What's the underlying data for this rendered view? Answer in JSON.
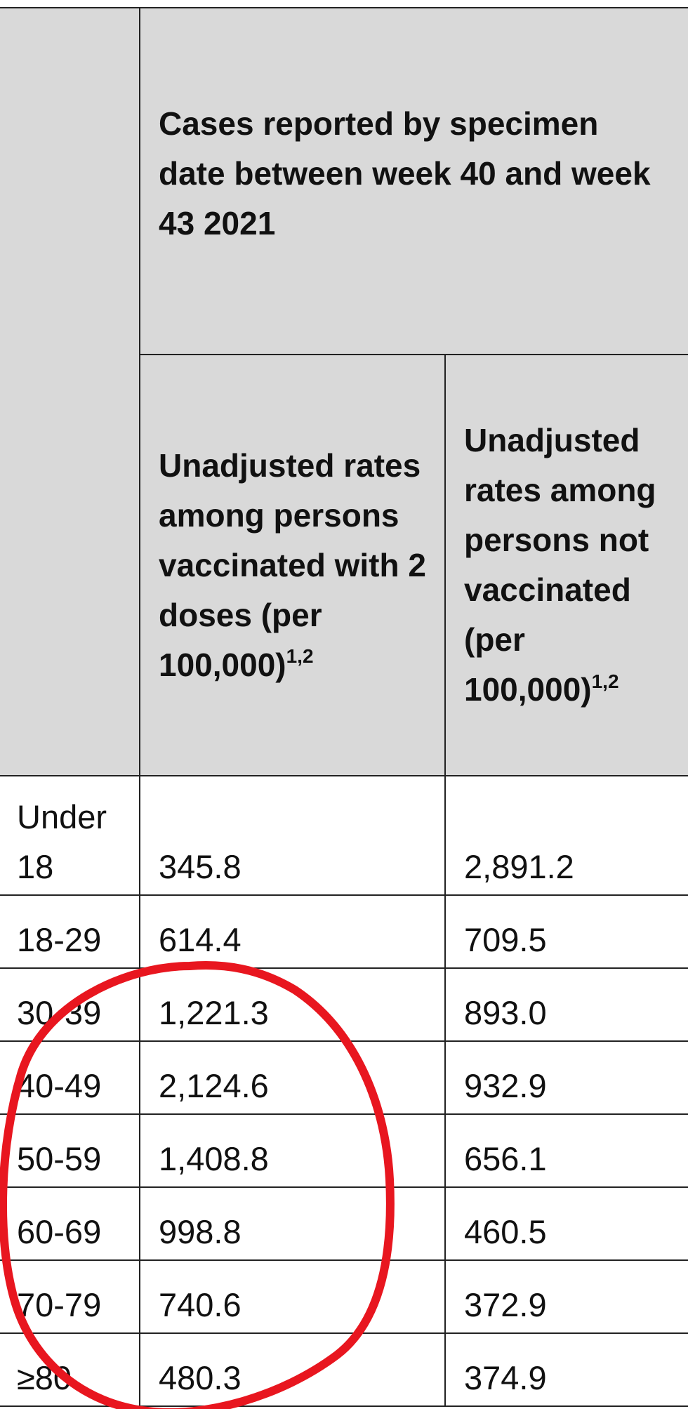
{
  "table": {
    "header": {
      "group_label": "Cases reported by specimen date between week 40 and week 43 2021",
      "col_vaccinated": "Unadjusted rates among persons vaccinated with 2 doses (per 100,000)",
      "col_vaccinated_sup": "1,2",
      "col_unvaccinated": "Unadjusted rates among persons not vaccinated (per 100,000)",
      "col_unvaccinated_sup": "1,2"
    },
    "rows": [
      {
        "age": "Under 18",
        "vaccinated": "345.8",
        "unvaccinated": "2,891.2"
      },
      {
        "age": "18-29",
        "vaccinated": "614.4",
        "unvaccinated": "709.5"
      },
      {
        "age": "30-39",
        "vaccinated": "1,221.3",
        "unvaccinated": "893.0"
      },
      {
        "age": "40-49",
        "vaccinated": "2,124.6",
        "unvaccinated": "932.9"
      },
      {
        "age": "50-59",
        "vaccinated": "1,408.8",
        "unvaccinated": "656.1"
      },
      {
        "age": "60-69",
        "vaccinated": "998.8",
        "unvaccinated": "460.5"
      },
      {
        "age": "70-79",
        "vaccinated": "740.6",
        "unvaccinated": "372.9"
      },
      {
        "age": "≥80",
        "vaccinated": "480.3",
        "unvaccinated": "374.9"
      }
    ]
  },
  "annotation": {
    "type": "circle",
    "color": "#e8161f"
  }
}
